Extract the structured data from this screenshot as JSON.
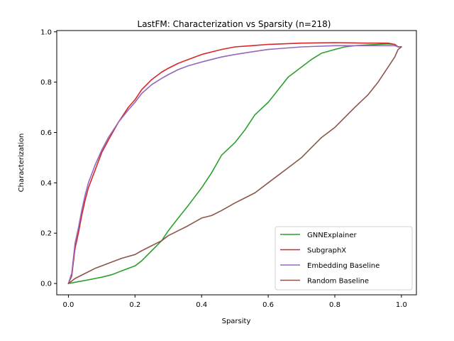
{
  "chart_data": {
    "type": "line",
    "title": "LastFM: Characterization vs Sparsity (n=218)",
    "xlabel": "Sparsity",
    "ylabel": "Characterization",
    "xlim": [
      -0.035,
      1.045
    ],
    "ylim": [
      -0.045,
      1.005
    ],
    "xticks": [
      0.0,
      0.2,
      0.4,
      0.6,
      0.8,
      1.0
    ],
    "xtick_labels": [
      "0.0",
      "0.2",
      "0.4",
      "0.6",
      "0.8",
      "1.0"
    ],
    "yticks": [
      0.0,
      0.2,
      0.4,
      0.6,
      0.8,
      1.0
    ],
    "ytick_labels": [
      "0.0",
      "0.2",
      "0.4",
      "0.6",
      "0.8",
      "1.0"
    ],
    "grid": false,
    "legend_position": "lower-right",
    "series": [
      {
        "name": "GNNExplainer",
        "color": "#2ca02c",
        "x": [
          0.0,
          0.02,
          0.05,
          0.08,
          0.1,
          0.13,
          0.16,
          0.2,
          0.22,
          0.25,
          0.28,
          0.3,
          0.33,
          0.36,
          0.4,
          0.43,
          0.46,
          0.5,
          0.53,
          0.56,
          0.6,
          0.63,
          0.66,
          0.7,
          0.73,
          0.76,
          0.8,
          0.83,
          0.86,
          0.9,
          0.93,
          0.96,
          0.98,
          0.99,
          1.0
        ],
        "y": [
          0.0,
          0.005,
          0.012,
          0.02,
          0.025,
          0.035,
          0.05,
          0.07,
          0.09,
          0.13,
          0.17,
          0.21,
          0.26,
          0.31,
          0.38,
          0.44,
          0.51,
          0.56,
          0.61,
          0.67,
          0.72,
          0.77,
          0.82,
          0.86,
          0.89,
          0.915,
          0.93,
          0.94,
          0.945,
          0.948,
          0.95,
          0.952,
          0.95,
          0.94,
          0.94
        ]
      },
      {
        "name": "SubgraphX",
        "color": "#d62728",
        "x": [
          0.0,
          0.01,
          0.02,
          0.03,
          0.04,
          0.05,
          0.06,
          0.08,
          0.1,
          0.12,
          0.15,
          0.18,
          0.2,
          0.22,
          0.25,
          0.28,
          0.3,
          0.33,
          0.36,
          0.4,
          0.43,
          0.46,
          0.5,
          0.55,
          0.6,
          0.7,
          0.8,
          0.9,
          0.96,
          0.98,
          0.99,
          1.0
        ],
        "y": [
          0.0,
          0.03,
          0.14,
          0.2,
          0.27,
          0.33,
          0.38,
          0.45,
          0.52,
          0.57,
          0.64,
          0.7,
          0.73,
          0.77,
          0.81,
          0.84,
          0.855,
          0.875,
          0.89,
          0.91,
          0.92,
          0.93,
          0.94,
          0.945,
          0.95,
          0.955,
          0.957,
          0.955,
          0.955,
          0.95,
          0.94,
          0.94
        ]
      },
      {
        "name": "Embedding Baseline",
        "color": "#9467bd",
        "x": [
          0.0,
          0.01,
          0.02,
          0.03,
          0.04,
          0.05,
          0.06,
          0.08,
          0.1,
          0.12,
          0.15,
          0.18,
          0.2,
          0.22,
          0.25,
          0.28,
          0.3,
          0.33,
          0.36,
          0.4,
          0.43,
          0.46,
          0.5,
          0.55,
          0.6,
          0.7,
          0.8,
          0.9,
          0.96,
          0.98,
          0.99,
          1.0
        ],
        "y": [
          0.0,
          0.04,
          0.16,
          0.22,
          0.29,
          0.35,
          0.4,
          0.47,
          0.53,
          0.58,
          0.64,
          0.69,
          0.72,
          0.755,
          0.79,
          0.815,
          0.83,
          0.85,
          0.865,
          0.88,
          0.89,
          0.9,
          0.91,
          0.92,
          0.93,
          0.94,
          0.945,
          0.945,
          0.945,
          0.945,
          0.94,
          0.94
        ]
      },
      {
        "name": "Random Baseline",
        "color": "#8c564b",
        "x": [
          0.0,
          0.02,
          0.05,
          0.08,
          0.1,
          0.13,
          0.16,
          0.2,
          0.22,
          0.25,
          0.28,
          0.3,
          0.33,
          0.36,
          0.4,
          0.43,
          0.46,
          0.5,
          0.53,
          0.56,
          0.6,
          0.63,
          0.66,
          0.7,
          0.73,
          0.76,
          0.8,
          0.83,
          0.86,
          0.9,
          0.93,
          0.96,
          0.98,
          0.99,
          1.0
        ],
        "y": [
          0.0,
          0.02,
          0.04,
          0.06,
          0.07,
          0.085,
          0.1,
          0.115,
          0.13,
          0.15,
          0.17,
          0.19,
          0.21,
          0.23,
          0.26,
          0.27,
          0.29,
          0.32,
          0.34,
          0.36,
          0.4,
          0.43,
          0.46,
          0.5,
          0.54,
          0.58,
          0.62,
          0.66,
          0.7,
          0.75,
          0.8,
          0.86,
          0.9,
          0.93,
          0.94
        ]
      }
    ]
  }
}
